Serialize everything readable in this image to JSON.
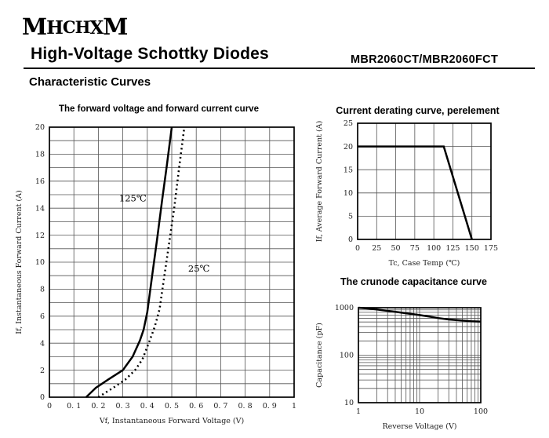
{
  "header": {
    "logo": "MHCHXM",
    "logo_letters": [
      "M",
      "H",
      "C",
      "H",
      "X",
      "M"
    ],
    "title": "High-Voltage Schottky Diodes",
    "part_number": "MBR2060CT/MBR2060FCT",
    "section_title": "Characteristic Curves"
  },
  "colors": {
    "ink": "#000000",
    "grid": "#555555",
    "tick_text": "#222222"
  },
  "chart_data": [
    {
      "id": "fwd",
      "type": "line",
      "title": "The forward voltage and forward current curve",
      "xlabel": "Vf, Instantaneous Forward Voltage (V)",
      "ylabel": "If, Instantaneous Forward Current (A)",
      "xlim": [
        0,
        1
      ],
      "ylim": [
        0,
        20
      ],
      "grid": "on",
      "legend_position": "inline-annotations",
      "xticks": [
        0,
        0.1,
        0.2,
        0.3,
        0.4,
        0.5,
        0.6,
        0.7,
        0.8,
        0.9,
        1
      ],
      "xtick_labels": [
        "0",
        "0. 1",
        "0. 2",
        "0. 3",
        "0. 4",
        "0. 5",
        "0. 6",
        "0. 7",
        "0. 8",
        "0. 9",
        "1"
      ],
      "yticks": [
        0,
        2,
        4,
        6,
        8,
        10,
        12,
        14,
        16,
        18,
        20
      ],
      "ytick_labels": [
        "0",
        "2",
        "4",
        "6",
        "8",
        "10",
        "12",
        "14",
        "16",
        "18",
        "20"
      ],
      "xgrid": [
        0.1,
        0.2,
        0.3,
        0.4,
        0.5,
        0.6,
        0.7,
        0.8,
        0.9
      ],
      "ygrid": [
        1,
        2,
        3,
        4,
        5,
        6,
        7,
        8,
        9,
        10,
        11,
        12,
        13,
        14,
        15,
        16,
        17,
        18,
        19
      ],
      "series": [
        {
          "name": "125℃",
          "style": "solid",
          "points": [
            [
              0.15,
              0
            ],
            [
              0.19,
              0.7
            ],
            [
              0.24,
              1.3
            ],
            [
              0.3,
              2.0
            ],
            [
              0.34,
              3.0
            ],
            [
              0.37,
              4.2
            ],
            [
              0.385,
              5.0
            ],
            [
              0.4,
              6.3
            ],
            [
              0.42,
              9.0
            ],
            [
              0.44,
              11.7
            ],
            [
              0.46,
              14.5
            ],
            [
              0.48,
              17.2
            ],
            [
              0.5,
              20.0
            ]
          ]
        },
        {
          "name": "25℃",
          "style": "dotted",
          "points": [
            [
              0.2,
              0
            ],
            [
              0.27,
              0.8
            ],
            [
              0.31,
              1.3
            ],
            [
              0.35,
              2.0
            ],
            [
              0.38,
              2.8
            ],
            [
              0.41,
              4.2
            ],
            [
              0.43,
              5.2
            ],
            [
              0.45,
              6.5
            ],
            [
              0.47,
              9.0
            ],
            [
              0.49,
              11.5
            ],
            [
              0.51,
              14.0
            ],
            [
              0.53,
              17.0
            ],
            [
              0.55,
              19.8
            ]
          ]
        }
      ],
      "annotations": [
        {
          "text": "125℃",
          "x": 0.285,
          "y": 14.5
        },
        {
          "text": "25℃",
          "x": 0.567,
          "y": 9.3
        }
      ]
    },
    {
      "id": "derating",
      "type": "line",
      "title": "Current derating curve, perelement",
      "xlabel": "Tc, Case Temp (℃)",
      "ylabel": "If, Average Forward Current (A)",
      "xlim": [
        0,
        175
      ],
      "ylim": [
        0,
        25
      ],
      "grid": "on",
      "xticks": [
        0,
        25,
        50,
        75,
        100,
        125,
        150,
        175
      ],
      "xtick_labels": [
        "0",
        "25",
        "50",
        "75",
        "100",
        "125",
        "150",
        "175"
      ],
      "yticks": [
        0,
        5,
        10,
        15,
        20,
        25
      ],
      "ytick_labels": [
        "0",
        "5",
        "10",
        "15",
        "20",
        "25"
      ],
      "xgrid": [
        25,
        50,
        75,
        100,
        125,
        150
      ],
      "ygrid": [
        5,
        10,
        15,
        20
      ],
      "series": [
        {
          "name": "derating",
          "style": "solid",
          "points": [
            [
              0,
              20
            ],
            [
              113,
              20
            ],
            [
              150,
              0
            ]
          ]
        }
      ],
      "annotations": []
    },
    {
      "id": "cap",
      "type": "line",
      "title": "The crunode capacitance curve",
      "xlabel": "Reverse Voltage (V)",
      "ylabel": "Capacitance (pF)",
      "xscale": "log",
      "yscale": "log",
      "xlim": [
        1,
        100
      ],
      "ylim": [
        10,
        1000
      ],
      "grid": "on",
      "xticks": [
        1,
        10,
        100
      ],
      "xtick_labels": [
        "1",
        "10",
        "100"
      ],
      "yticks": [
        10,
        100,
        1000
      ],
      "ytick_labels": [
        "10",
        "100",
        "1000"
      ],
      "xgrid": [
        2,
        3,
        4,
        5,
        6,
        7,
        8,
        9,
        10,
        20,
        30,
        40,
        50,
        60,
        70,
        80,
        90
      ],
      "ygrid": [
        20,
        30,
        40,
        50,
        60,
        70,
        80,
        90,
        100,
        200,
        300,
        400,
        500,
        600,
        700,
        800,
        900
      ],
      "series": [
        {
          "name": "capacitance",
          "style": "solid",
          "points": [
            [
              1,
              1000
            ],
            [
              1.5,
              960
            ],
            [
              2,
              920
            ],
            [
              3,
              860
            ],
            [
              5,
              790
            ],
            [
              7,
              745
            ],
            [
              10,
              700
            ],
            [
              15,
              645
            ],
            [
              20,
              605
            ],
            [
              30,
              565
            ],
            [
              50,
              535
            ],
            [
              70,
              520
            ],
            [
              100,
              510
            ]
          ]
        }
      ],
      "annotations": []
    }
  ]
}
